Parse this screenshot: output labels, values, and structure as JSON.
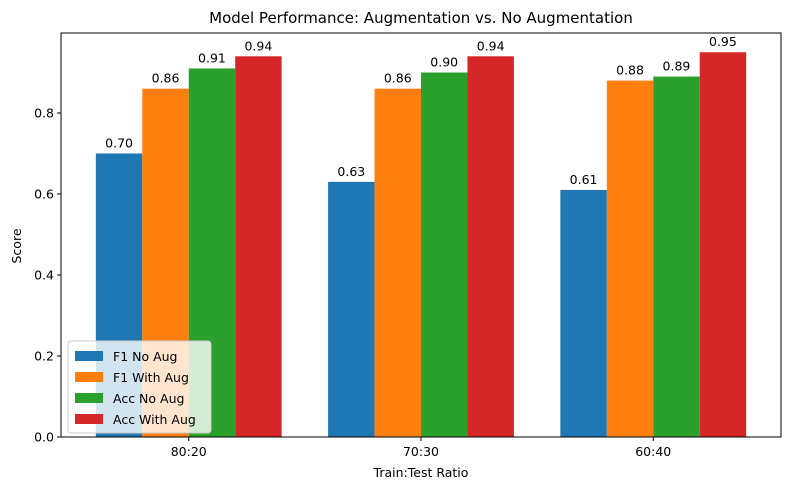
{
  "chart_data": {
    "type": "bar",
    "title": "Model Performance: Augmentation vs. No Augmentation",
    "xlabel": "Train:Test Ratio",
    "ylabel": "Score",
    "categories": [
      "80:20",
      "70:30",
      "60:40"
    ],
    "yticks": [
      "0.0",
      "0.2",
      "0.4",
      "0.6",
      "0.8"
    ],
    "ylim": [
      0,
      0.9975
    ],
    "grid": false,
    "legend_position": "lower-left",
    "series": [
      {
        "name": "F1 No Aug",
        "color": "#1f77b4",
        "values": [
          0.7,
          0.63,
          0.61
        ],
        "labels": [
          "0.70",
          "0.63",
          "0.61"
        ]
      },
      {
        "name": "F1 With Aug",
        "color": "#ff7f0e",
        "values": [
          0.86,
          0.86,
          0.88
        ],
        "labels": [
          "0.86",
          "0.86",
          "0.88"
        ]
      },
      {
        "name": "Acc No Aug",
        "color": "#2ca02c",
        "values": [
          0.91,
          0.9,
          0.89
        ],
        "labels": [
          "0.91",
          "0.90",
          "0.89"
        ]
      },
      {
        "name": "Acc With Aug",
        "color": "#d62728",
        "values": [
          0.94,
          0.94,
          0.95
        ],
        "labels": [
          "0.94",
          "0.94",
          "0.95"
        ]
      }
    ]
  }
}
